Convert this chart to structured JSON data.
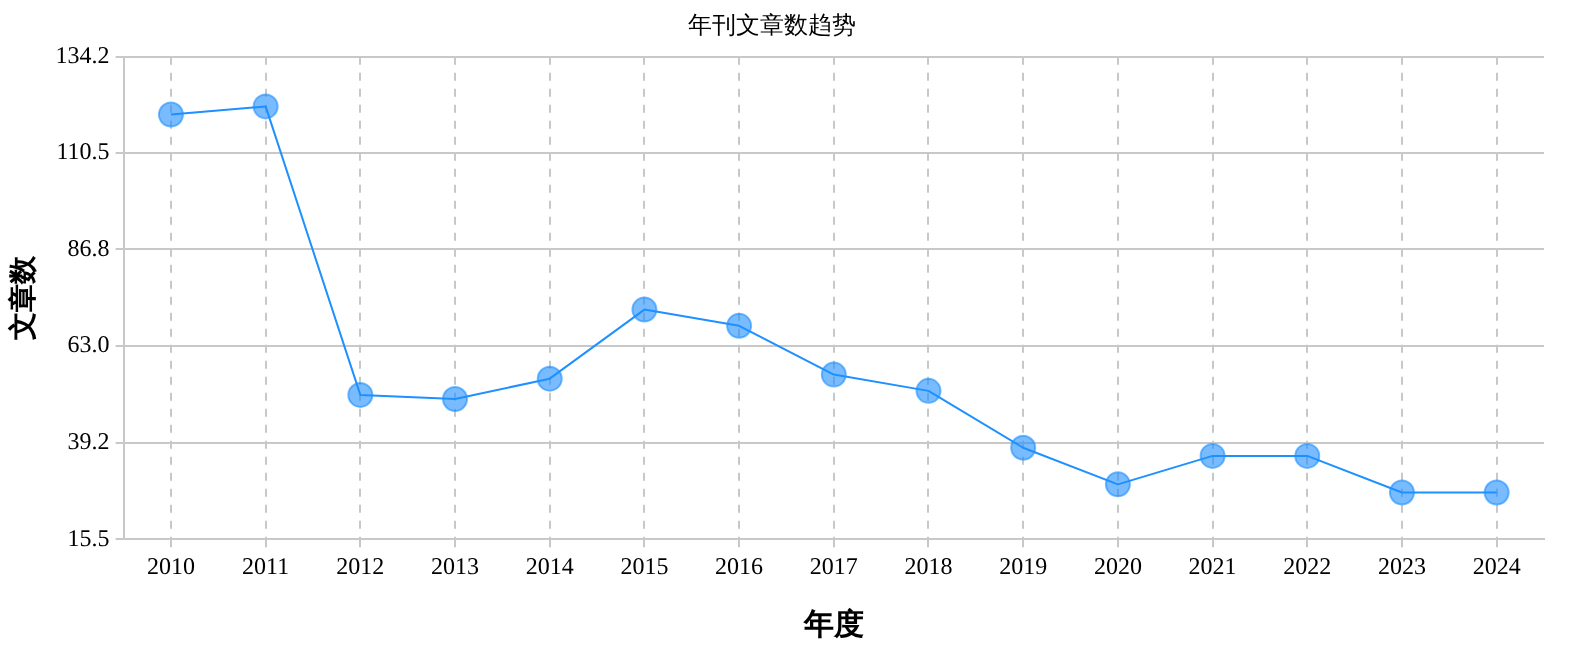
{
  "chart_data": {
    "type": "line",
    "title": "年刊文章数趋势",
    "xlabel": "年度",
    "ylabel": "文章数",
    "categories": [
      "2010",
      "2011",
      "2012",
      "2013",
      "2014",
      "2015",
      "2016",
      "2017",
      "2018",
      "2019",
      "2020",
      "2021",
      "2022",
      "2023",
      "2024"
    ],
    "series": [
      {
        "color": "#1e90ff",
        "values": [
          120,
          122,
          51,
          50,
          55,
          72,
          68,
          56,
          52,
          38,
          29,
          36,
          36,
          27,
          27
        ]
      }
    ],
    "ylim": [
      15.5,
      134.2
    ],
    "yticks": [
      15.5,
      39.2,
      {
        "value": 63.0,
        "label": "63.0"
      },
      {
        "value": 86.8,
        "label": "86.8"
      },
      110.5,
      134.2
    ],
    "grid": true,
    "legend": false,
    "marker": "circle",
    "line_style": "solid"
  }
}
